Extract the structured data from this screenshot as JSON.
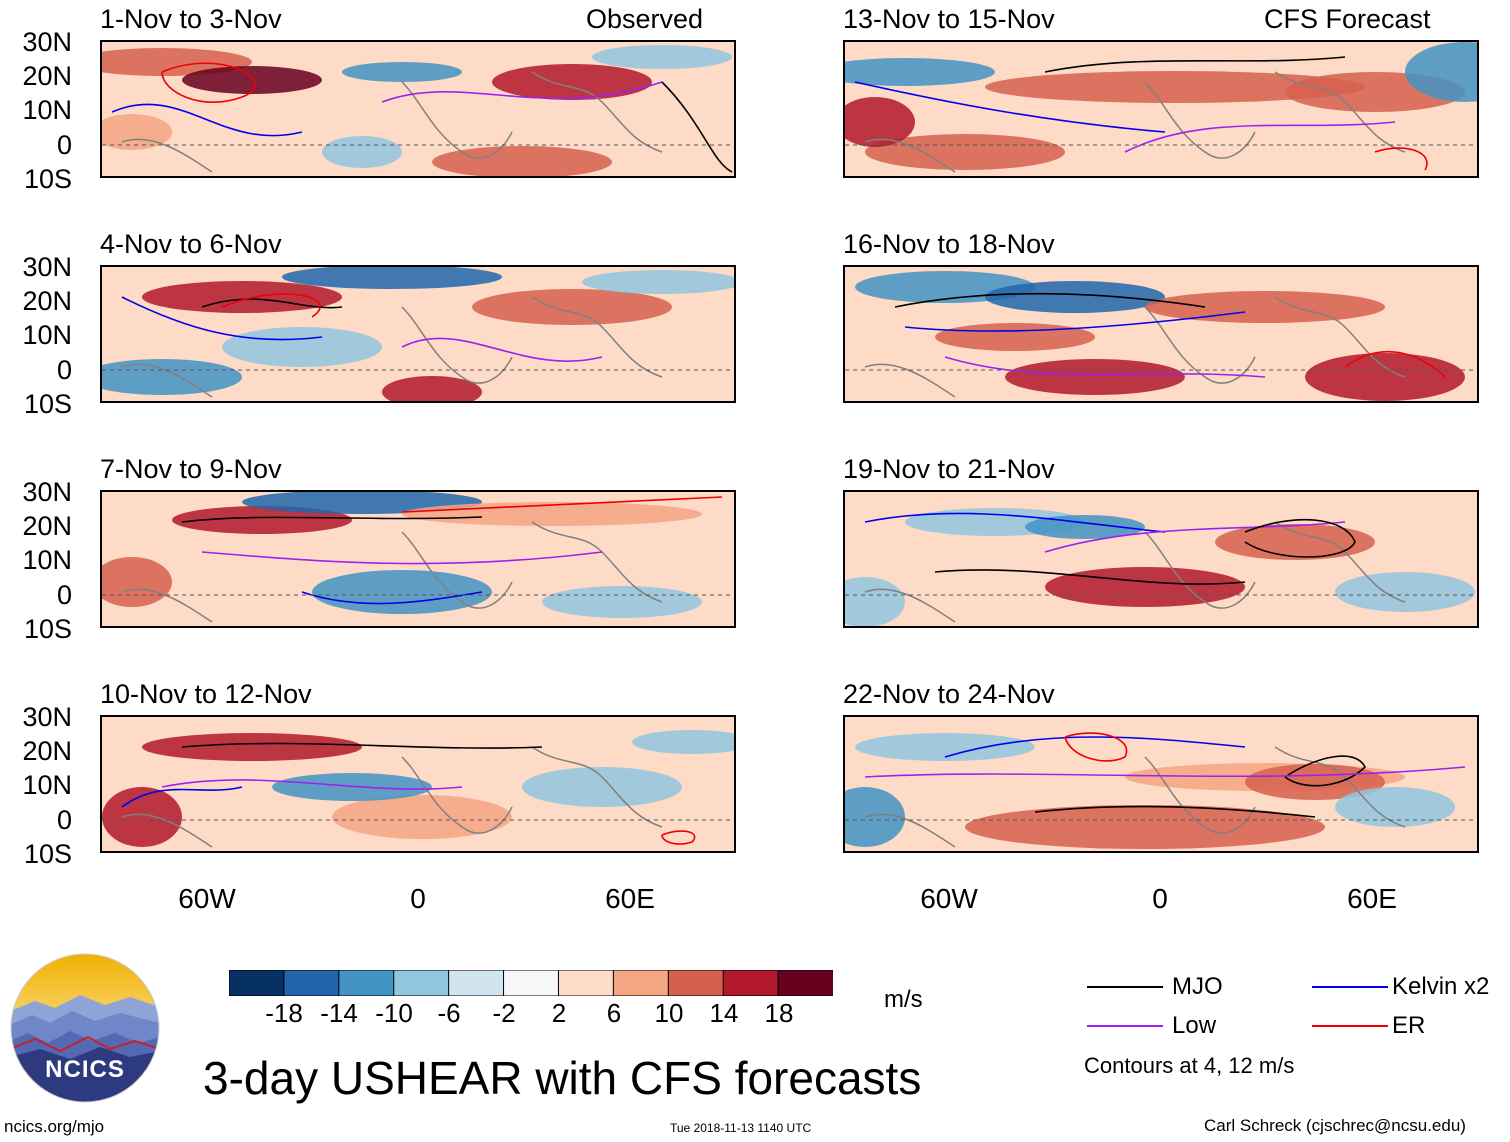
{
  "panels": {
    "left": [
      {
        "title": "1-Nov to 3-Nov",
        "tag": "Observed"
      },
      {
        "title": "4-Nov to 6-Nov",
        "tag": ""
      },
      {
        "title": "7-Nov to 9-Nov",
        "tag": ""
      },
      {
        "title": "10-Nov to 12-Nov",
        "tag": ""
      }
    ],
    "right": [
      {
        "title": "13-Nov to 15-Nov",
        "tag": "CFS Forecast"
      },
      {
        "title": "16-Nov to 18-Nov",
        "tag": ""
      },
      {
        "title": "19-Nov to 21-Nov",
        "tag": ""
      },
      {
        "title": "22-Nov to 24-Nov",
        "tag": ""
      }
    ]
  },
  "lat_labels": [
    "30N",
    "20N",
    "10N",
    "0",
    "10S"
  ],
  "lon_labels": [
    "60W",
    "0",
    "60E"
  ],
  "colorbar": {
    "labels": [
      "-18",
      "-14",
      "-10",
      "-6",
      "-2",
      "2",
      "6",
      "10",
      "14",
      "18"
    ],
    "colors": [
      "#053061",
      "#2166ac",
      "#4393c3",
      "#92c5de",
      "#d1e5f0",
      "#f7f7f7",
      "#fddbc7",
      "#f4a582",
      "#d6604d",
      "#b2182b",
      "#67001f"
    ],
    "unit": "m/s"
  },
  "legend": {
    "items": [
      {
        "label": "MJO",
        "color": "#000000"
      },
      {
        "label": "Kelvin x2",
        "color": "#0000ee"
      },
      {
        "label": "Low",
        "color": "#a020f0"
      },
      {
        "label": "ER",
        "color": "#ee0000"
      }
    ],
    "note": "Contours at 4, 12 m/s"
  },
  "logo": {
    "text": "NCICS"
  },
  "main_title": "3-day USHEAR with CFS forecasts",
  "footer": {
    "url": "ncics.org/mjo",
    "timestamp": "Tue 2018-11-13 1140 UTC",
    "credit": "Carl Schreck (cjschrec@ncsu.edu)"
  }
}
